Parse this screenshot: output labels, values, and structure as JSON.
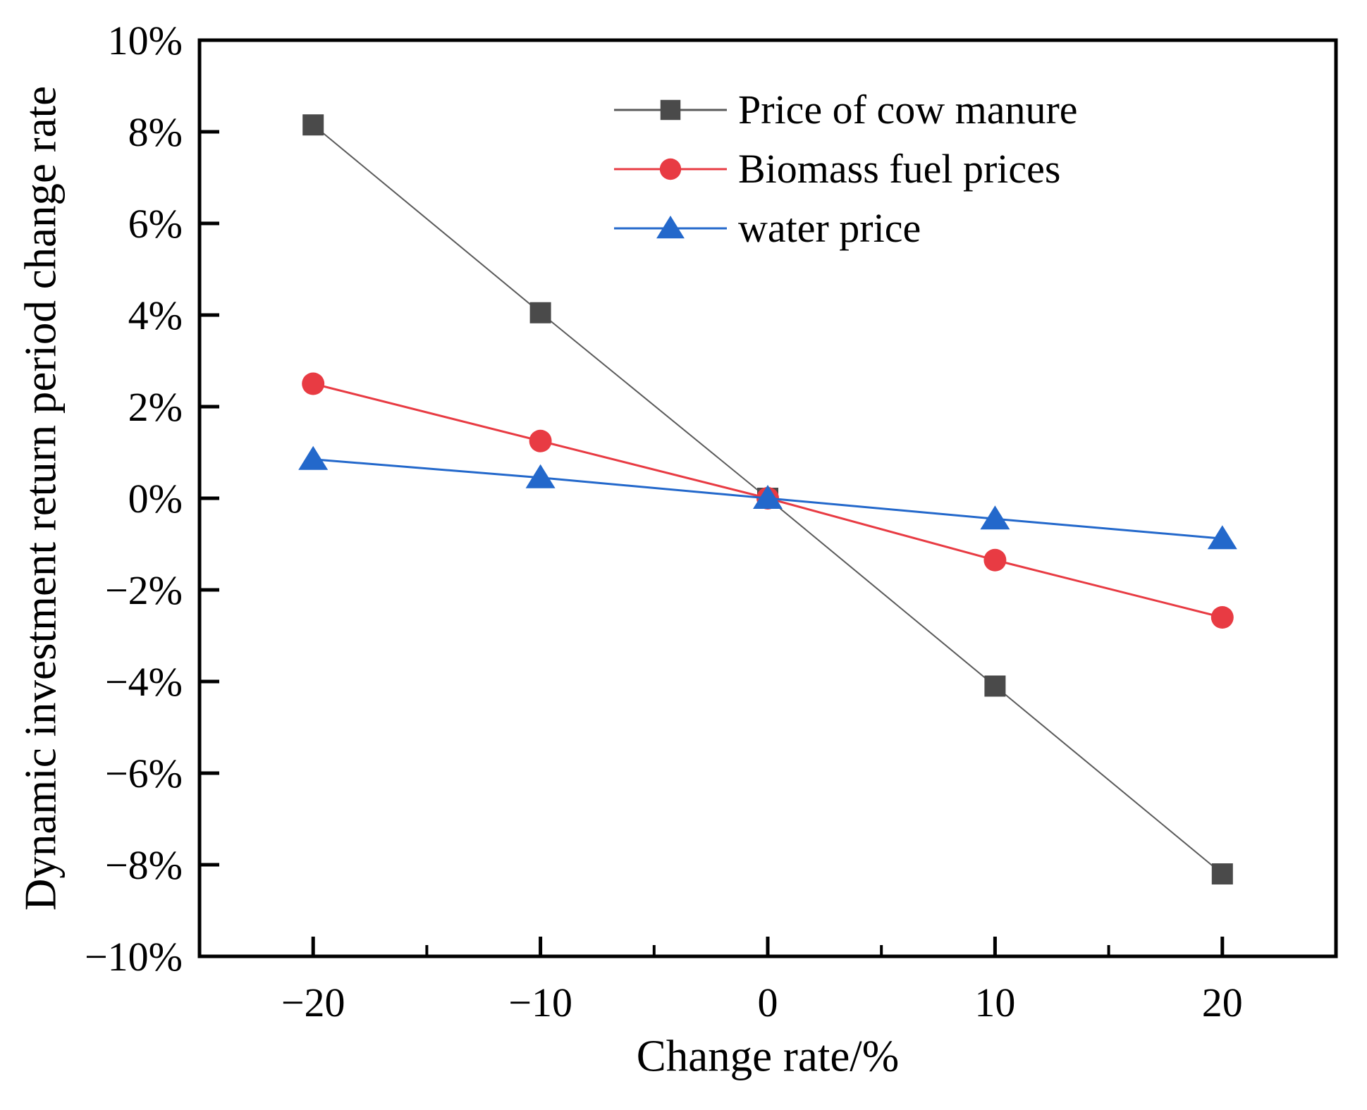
{
  "chart_data": {
    "type": "line",
    "title": "",
    "xlabel": "Change rate/%",
    "ylabel": "Dynamic investment return period change rate",
    "x": [
      -20,
      -10,
      0,
      10,
      20
    ],
    "series": [
      {
        "name": "Price of cow manure",
        "marker": "square",
        "color": "#4a4a4a",
        "line_color": "#5a5a5a",
        "values": [
          8.15,
          4.05,
          0,
          -4.1,
          -8.2
        ]
      },
      {
        "name": "Biomass fuel prices",
        "marker": "circle",
        "color": "#e83b43",
        "line_color": "#e83b43",
        "values": [
          2.5,
          1.25,
          0,
          -1.35,
          -2.6
        ]
      },
      {
        "name": "water price",
        "marker": "triangle",
        "color": "#2368cb",
        "line_color": "#2368cb",
        "values": [
          0.85,
          0.45,
          0,
          -0.45,
          -0.88
        ]
      }
    ],
    "xlim": [
      -25,
      25
    ],
    "ylim": [
      -10,
      10
    ],
    "x_major_ticks": [
      -20,
      -10,
      0,
      10,
      20
    ],
    "x_tick_labels": [
      "−20",
      "−10",
      "0",
      "10",
      "20"
    ],
    "x_minor_ticks": [
      -15,
      -5,
      5,
      15
    ],
    "y_major_ticks": [
      10,
      8,
      6,
      4,
      2,
      0,
      -2,
      -4,
      -6,
      -8,
      -10
    ],
    "y_tick_labels": [
      "10%",
      "8%",
      "6%",
      "4%",
      "2%",
      "0%",
      "−2%",
      "−4%",
      "−6%",
      "−8%",
      "−10%"
    ],
    "grid": false,
    "legend_position": "inside-top-center",
    "frame_color": "#000000"
  }
}
